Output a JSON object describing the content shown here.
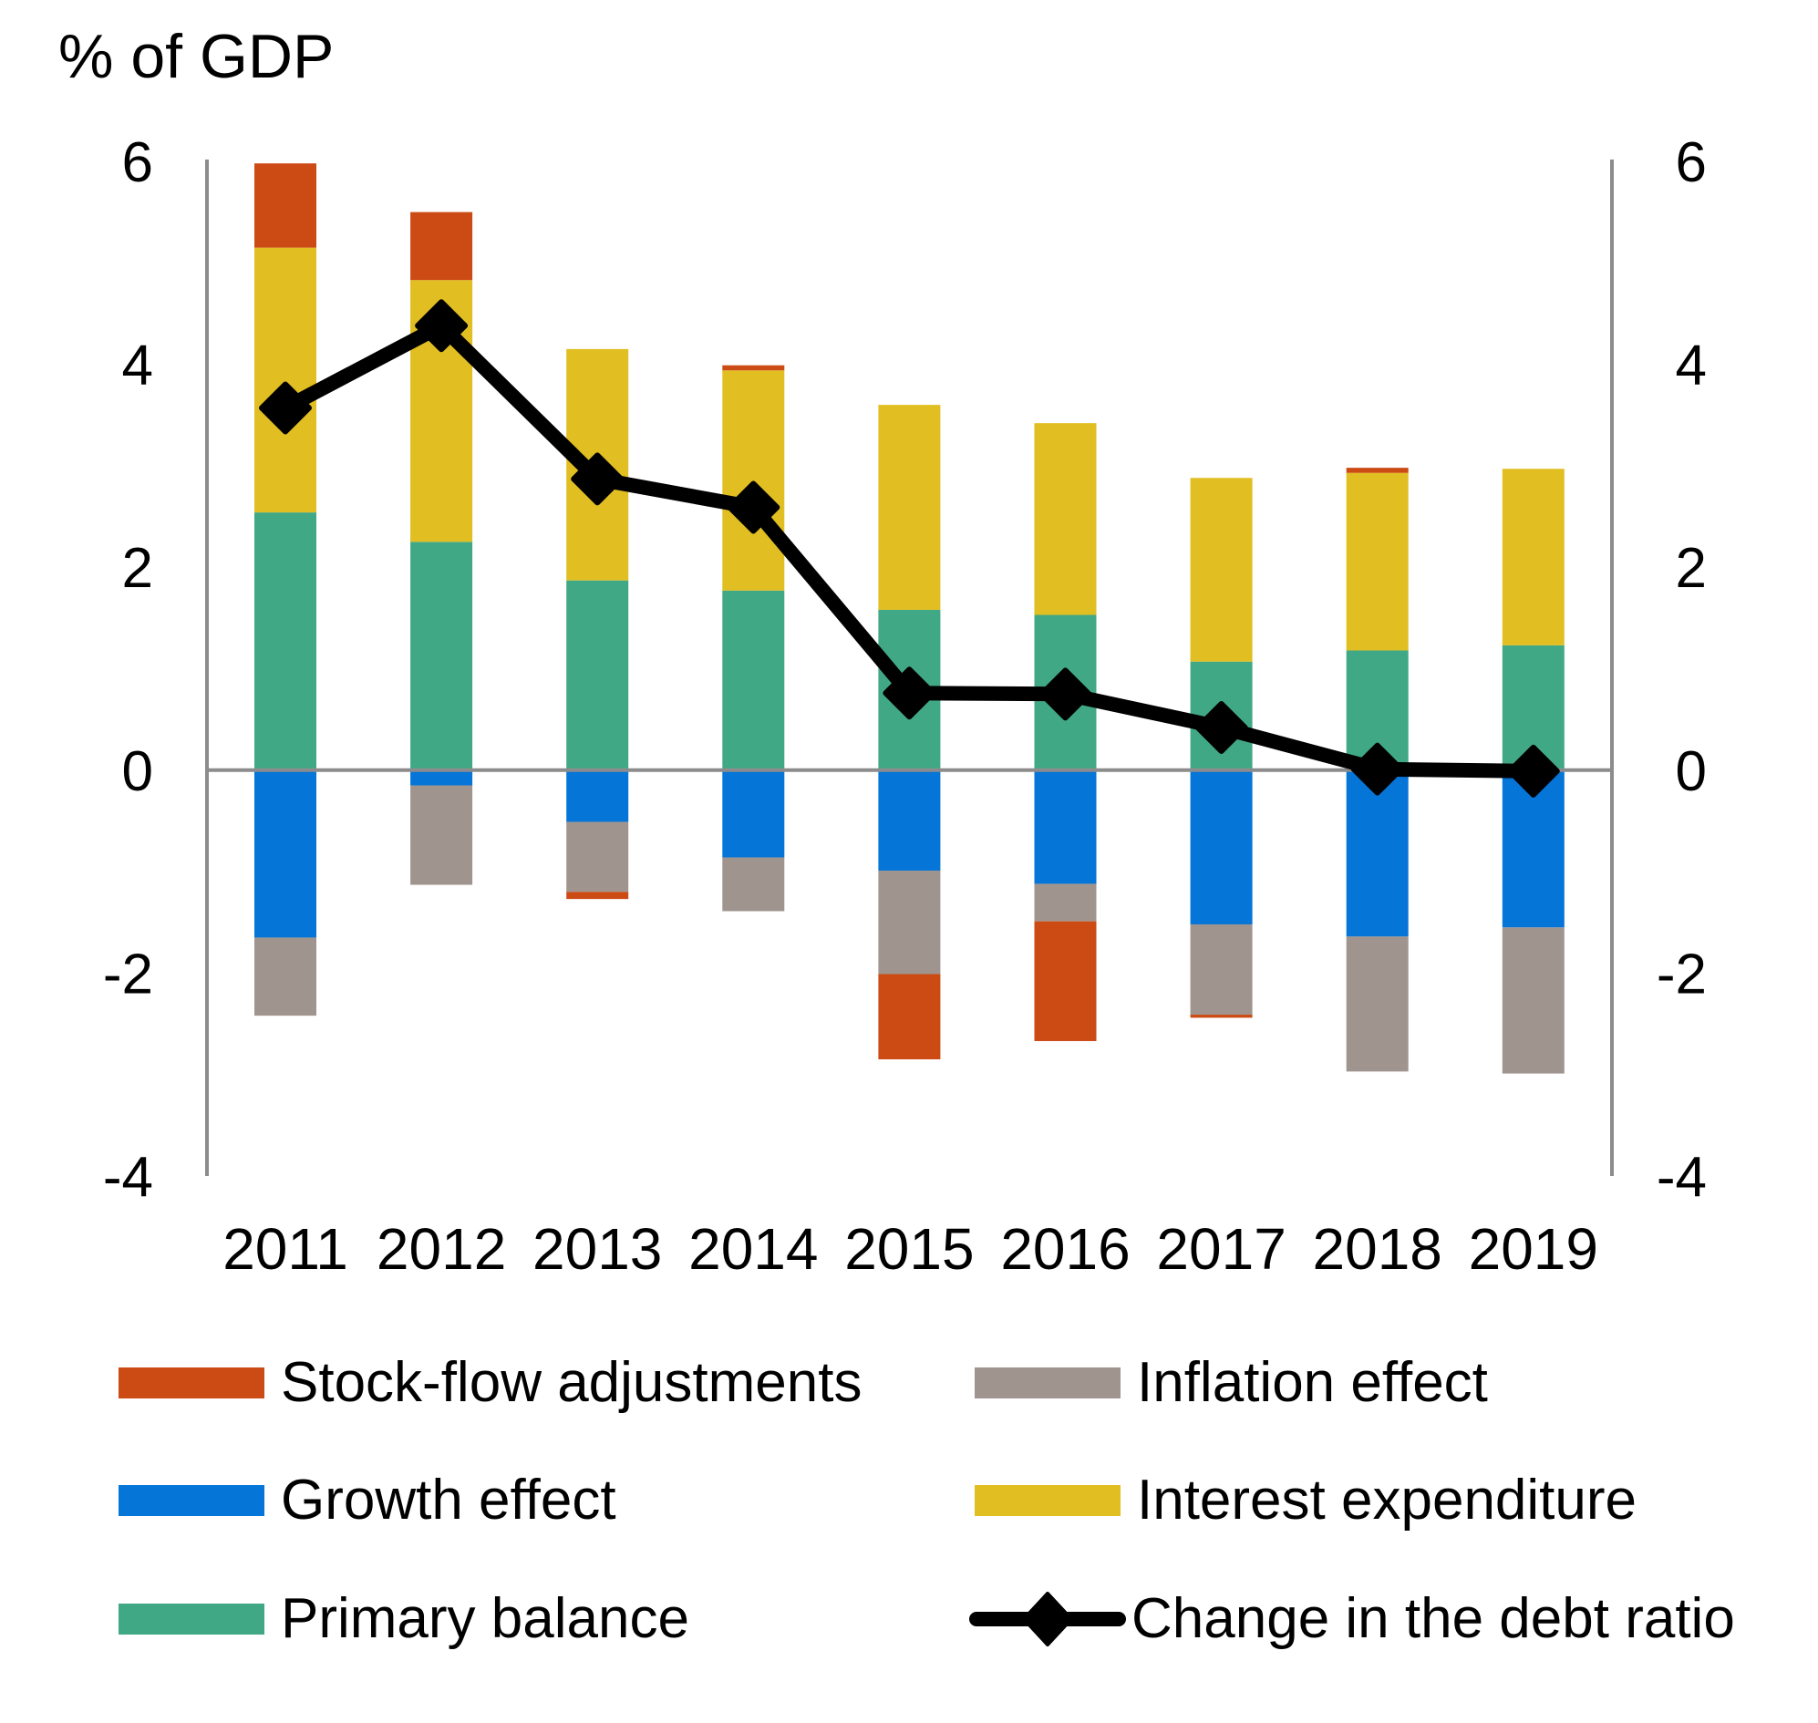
{
  "chart_data": {
    "type": "bar",
    "stacked": true,
    "title": "",
    "ylabel": "% of GDP",
    "xlabel": "",
    "categories": [
      "2011",
      "2012",
      "2013",
      "2014",
      "2015",
      "2016",
      "2017",
      "2018",
      "2019"
    ],
    "ylim": [
      -4,
      6
    ],
    "yticks": [
      6,
      4,
      2,
      0,
      -2,
      -4
    ],
    "ytick_labels": [
      "6",
      "4",
      "2",
      "0",
      "-2",
      "-4"
    ],
    "secondary_ylim": [
      -4,
      6
    ],
    "grid": false,
    "legend_position": "bottom",
    "series": [
      {
        "name": "Primary balance",
        "type": "bar",
        "color": "#41A886",
        "values": [
          2.54,
          2.25,
          1.87,
          1.77,
          1.58,
          1.53,
          1.07,
          1.18,
          1.23
        ]
      },
      {
        "name": "Interest expenditure",
        "type": "bar",
        "color": "#E1BE21",
        "values": [
          2.61,
          2.58,
          2.28,
          2.17,
          2.02,
          1.89,
          1.81,
          1.75,
          1.74
        ]
      },
      {
        "name": "Growth effect",
        "type": "bar",
        "color": "#0575D8",
        "values": [
          -1.65,
          -0.15,
          -0.51,
          -0.86,
          -0.99,
          -1.12,
          -1.52,
          -1.64,
          -1.55
        ]
      },
      {
        "name": "Inflation effect",
        "type": "bar",
        "color": "#A0958E",
        "values": [
          -0.77,
          -0.98,
          -0.69,
          -0.53,
          -1.02,
          -0.37,
          -0.89,
          -1.33,
          -1.44
        ]
      },
      {
        "name": "Stock-flow adjustments",
        "type": "bar",
        "color": "#CC4A14",
        "values": [
          0.83,
          0.67,
          -0.07,
          0.05,
          -0.84,
          -1.18,
          -0.03,
          0.05,
          0.0
        ]
      },
      {
        "name": "Change in the debt ratio",
        "type": "line",
        "color": "#000000",
        "marker": "diamond",
        "values": [
          3.57,
          4.38,
          2.87,
          2.59,
          0.76,
          0.75,
          0.42,
          0.01,
          -0.01
        ]
      }
    ],
    "legend": [
      {
        "label": "Stock-flow adjustments",
        "color": "#CC4A14",
        "kind": "swatch"
      },
      {
        "label": "Inflation effect",
        "color": "#A0958E",
        "kind": "swatch"
      },
      {
        "label": "Growth effect",
        "color": "#0575D8",
        "kind": "swatch"
      },
      {
        "label": "Interest expenditure",
        "color": "#E1BE21",
        "kind": "swatch"
      },
      {
        "label": "Primary balance",
        "color": "#41A886",
        "kind": "swatch"
      },
      {
        "label": "Change in the debt ratio",
        "color": "#000000",
        "kind": "line-marker"
      }
    ]
  },
  "colors": {
    "axis": "#8C8C8C",
    "text": "#000000"
  }
}
